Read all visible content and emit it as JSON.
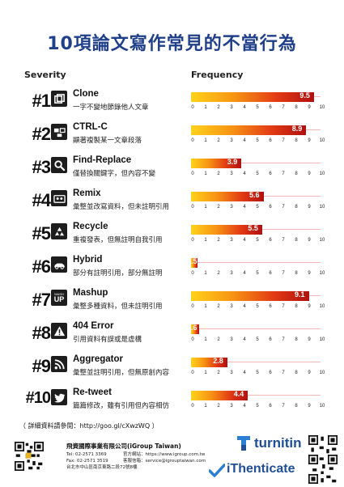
{
  "title": "10項論文寫作常見的不當行為",
  "severity_header": "Severity",
  "frequency_header": "Frequency",
  "colors": {
    "title": "#1f3f8a",
    "bar_start": "#ffd21a",
    "bar_end": "#b01010",
    "brand": "#1e4f97"
  },
  "rows": [
    {
      "rank": "#1",
      "name": "Clone",
      "desc": "一字不變地節錄他人文章",
      "value_label": "9.5",
      "icon": "clone-icon"
    },
    {
      "rank": "#2",
      "name": "CTRL-C",
      "desc": "顯著複製某一文章段落",
      "value_label": "8.9",
      "icon": "ctrl-c-icon"
    },
    {
      "rank": "#3",
      "name": "Find-Replace",
      "desc": "僅替換關鍵字，但內容不變",
      "value_label": "3.9",
      "icon": "search-icon"
    },
    {
      "rank": "#4",
      "name": "Remix",
      "desc": "彙整並改寫資料，但未註明引用",
      "value_label": "5.6",
      "icon": "cassette-icon"
    },
    {
      "rank": "#5",
      "name": "Recycle",
      "desc": "重複發表，但無註明自我引用",
      "value_label": "5.5",
      "icon": "recycle-icon"
    },
    {
      "rank": "#6",
      "name": "Hybrid",
      "desc": "部分有註明引用，部分無註明",
      "value_label": ".5",
      "icon": "car-icon"
    },
    {
      "rank": "#7",
      "name": "Mashup",
      "desc": "彙整多種資料，但未註明引用",
      "value_label": "9.1",
      "icon": "mashup-icon",
      "icon_text_top": "MASH",
      "icon_text_bottom": "UP"
    },
    {
      "rank": "#8",
      "name": "404 Error",
      "desc": "引用資料有誤或是虛構",
      "value_label": ".6",
      "icon": "warning-icon"
    },
    {
      "rank": "#9",
      "name": "Aggregator",
      "desc": "彙整並註明引用，但無原創內容",
      "value_label": "2.8",
      "icon": "rss-icon"
    },
    {
      "rank": "#10",
      "name": "Re-tweet",
      "desc": "篇篇修改，雖有引用但內容相仿",
      "value_label": "4.4",
      "icon": "bird-icon"
    }
  ],
  "chart_data": {
    "type": "bar",
    "orientation": "horizontal",
    "categories": [
      "Clone",
      "CTRL-C",
      "Find-Replace",
      "Remix",
      "Recycle",
      "Hybrid",
      "Mashup",
      "404 Error",
      "Aggregator",
      "Re-tweet"
    ],
    "values": [
      9.5,
      8.9,
      3.9,
      5.6,
      5.5,
      0.5,
      9.1,
      0.6,
      2.8,
      4.4
    ],
    "xlabel": "Frequency",
    "ylabel": "Severity",
    "xlim": [
      0,
      10
    ],
    "xticks": [
      "0",
      "1",
      "2",
      "3",
      "4",
      "5",
      "6",
      "7",
      "8",
      "9",
      "10"
    ],
    "title": "10項論文寫作常見的不當行為",
    "grid": false,
    "legend": "none"
  },
  "footer": {
    "reference": "（ 詳細資料請參閱：http://goo.gl/cXwzWQ ）",
    "company": "飛資國際事業有限公司(iGroup Taiwan)",
    "tel": "Tel: 02-2571 3369",
    "fax": "Fax: 02-2571 3519",
    "address": "台北市中山區南京東路二段72號8樓",
    "website_label": "官方網站：https://www.igroup.com.tw",
    "service_label": "客服信箱：service@igrouptaiwan.com",
    "turnitin": "turnitin",
    "ithenticate": "iThenticate"
  }
}
